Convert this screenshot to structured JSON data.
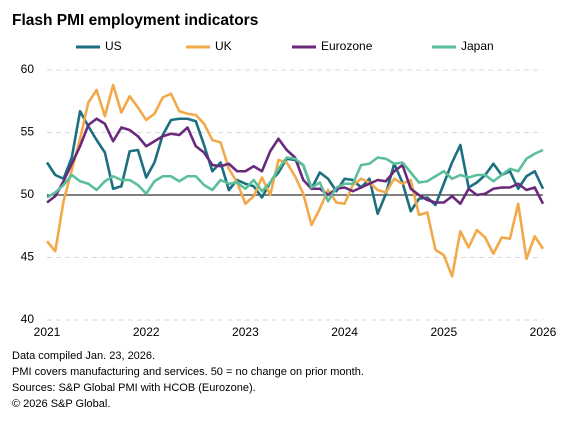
{
  "chart_data": {
    "type": "line",
    "title": "Flash PMI employment indicators",
    "notes": [
      "Data compiled Jan. 23, 2026.",
      "PMI covers manufacturing and services. 50 = no change on prior month.",
      "Sources: S&P Global PMI with HCOB (Eurozone).",
      "© 2026 S&P Global."
    ],
    "categories": [
      "2021",
      null,
      null,
      null,
      null,
      null,
      null,
      null,
      null,
      null,
      null,
      null,
      "2022",
      null,
      null,
      null,
      null,
      null,
      null,
      null,
      null,
      null,
      null,
      null,
      "2023",
      null,
      null,
      null,
      null,
      null,
      null,
      null,
      null,
      null,
      null,
      null,
      "2024",
      null,
      null,
      null,
      null,
      null,
      null,
      null,
      null,
      null,
      null,
      null,
      "2025",
      null,
      null,
      null,
      null,
      null,
      null,
      null,
      null,
      null,
      null,
      null,
      "2026"
    ],
    "series": [
      {
        "name": "US",
        "color": "#1b6f7f",
        "values": [
          52.6,
          51.6,
          51.3,
          53.0,
          56.7,
          55.5,
          54.4,
          53.4,
          50.5,
          50.7,
          53.5,
          53.6,
          51.4,
          52.6,
          54.8,
          56.0,
          56.1,
          56.1,
          55.9,
          54.0,
          51.9,
          52.6,
          50.4,
          51.2,
          50.9,
          50.7,
          49.8,
          51.0,
          51.8,
          52.9,
          52.8,
          52.4,
          50.5,
          51.8,
          51.3,
          50.3,
          51.3,
          51.2,
          50.6,
          51.3,
          48.5,
          50.1,
          52.5,
          51.0,
          48.7,
          49.7,
          49.8,
          49.2,
          50.9,
          52.6,
          54.0,
          50.6,
          51.0,
          51.6,
          52.5,
          51.6,
          51.9,
          50.5,
          51.5,
          51.9,
          50.5
        ]
      },
      {
        "name": "UK",
        "color": "#f2a94a",
        "values": [
          46.3,
          45.5,
          49.5,
          52.0,
          54.5,
          57.4,
          58.4,
          56.3,
          58.8,
          56.6,
          57.9,
          57.0,
          56.0,
          56.5,
          57.8,
          58.1,
          56.7,
          56.5,
          56.4,
          55.7,
          54.4,
          54.2,
          52.1,
          51.0,
          49.3,
          49.9,
          51.4,
          50.0,
          52.8,
          52.6,
          51.5,
          50.1,
          47.6,
          48.9,
          50.4,
          49.4,
          49.3,
          50.8,
          51.3,
          51.0,
          50.4,
          50.2,
          51.3,
          50.9,
          51.2,
          48.4,
          48.6,
          45.6,
          45.2,
          43.5,
          47.1,
          45.8,
          47.2,
          46.6,
          45.3,
          46.6,
          46.5,
          49.3,
          44.9,
          46.7,
          45.7
        ]
      },
      {
        "name": "Eurozone",
        "color": "#6a2a7c",
        "values": [
          49.4,
          49.9,
          51.1,
          52.5,
          53.9,
          55.6,
          56.1,
          55.7,
          54.3,
          55.4,
          55.2,
          54.7,
          53.9,
          54.3,
          54.7,
          54.9,
          54.8,
          55.4,
          53.9,
          53.4,
          52.4,
          52.3,
          52.5,
          51.9,
          51.9,
          52.3,
          51.9,
          53.5,
          54.5,
          53.6,
          53.0,
          51.2,
          50.5,
          50.5,
          50.0,
          50.5,
          50.6,
          50.3,
          50.6,
          50.9,
          51.2,
          51.1,
          51.9,
          52.4,
          50.5,
          50.0,
          49.6,
          49.4,
          49.4,
          49.9,
          49.3,
          50.5,
          50.0,
          50.1,
          50.5,
          50.6,
          50.6,
          50.9,
          50.4,
          50.6,
          49.3
        ]
      },
      {
        "name": "Japan",
        "color": "#5cbf9c",
        "values": [
          49.8,
          50.2,
          50.8,
          51.6,
          51.1,
          50.9,
          50.4,
          51.1,
          51.5,
          51.2,
          51.2,
          50.8,
          50.1,
          51.1,
          51.5,
          51.5,
          51.1,
          51.5,
          51.5,
          50.8,
          50.4,
          51.2,
          50.9,
          51.0,
          50.5,
          51.2,
          50.3,
          51.0,
          52.1,
          53.0,
          52.9,
          52.4,
          50.6,
          51.0,
          49.5,
          50.6,
          50.9,
          50.9,
          52.4,
          52.5,
          53.0,
          52.9,
          52.5,
          52.6,
          51.8,
          51.0,
          51.1,
          51.5,
          51.9,
          51.3,
          51.6,
          51.4,
          51.6,
          51.6,
          51.1,
          51.6,
          52.1,
          51.9,
          52.9,
          53.3,
          53.6
        ]
      }
    ],
    "ylim": [
      40,
      60
    ],
    "yticks": [
      40,
      45,
      50,
      55,
      60
    ],
    "grid": true,
    "baseline": 50,
    "legend": "top"
  }
}
